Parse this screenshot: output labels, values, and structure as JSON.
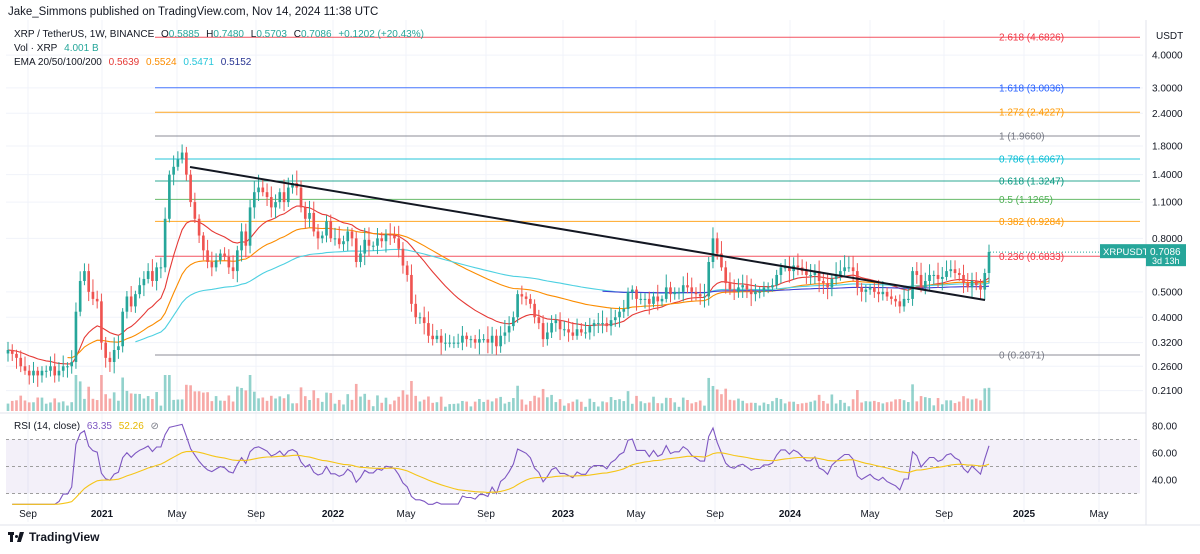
{
  "header": {
    "text": "Jake_Simmons published on TradingView.com, Nov 14, 2024 11:38 UTC"
  },
  "legend": {
    "symbol": "XRP / TetherUS, 1W, BINANCE",
    "ohlc": [
      {
        "k": "O",
        "v": "0.5885"
      },
      {
        "k": "H",
        "v": "0.7480"
      },
      {
        "k": "L",
        "v": "0.5703"
      },
      {
        "k": "C",
        "v": "0.7086"
      }
    ],
    "change": "+0.1202 (+20.43%)",
    "volume_label": "Vol · XRP",
    "volume_value": "4.001 B",
    "ema_label": "EMA 20/50/100/200",
    "ema_values": [
      {
        "v": "0.5639",
        "color": "#e53935"
      },
      {
        "v": "0.5524",
        "color": "#fb8c00"
      },
      {
        "v": "0.5471",
        "color": "#26c6da"
      },
      {
        "v": "0.5152",
        "color": "#283593"
      }
    ]
  },
  "rsi_legend": {
    "label": "RSI (14, close)",
    "value": "63.35",
    "ma_value": "52.26"
  },
  "footer": {
    "brand": "TradingView"
  },
  "colors": {
    "up": "#26a69a",
    "down": "#ef5350",
    "trendline": "#131722",
    "ema20": "#e53935",
    "ema50": "#fb8c00",
    "ema100": "#4dd0e1",
    "ema200": "#3f3fd0",
    "rsi": "#7e57c2",
    "rsi_ma": "#f5c518"
  },
  "chart_data": {
    "type": "candlestick",
    "title": "XRP / TetherUS, 1W, BINANCE",
    "price_unit": "USDT",
    "scale": "log",
    "y_ticks": [
      "4.0000",
      "3.0000",
      "2.4000",
      "1.8000",
      "1.4000",
      "1.1000",
      "0.8000",
      "0.5000",
      "0.4000",
      "0.3200",
      "0.2600",
      "0.2100"
    ],
    "x_ticks": [
      "Sep",
      "2021",
      "May",
      "Sep",
      "2022",
      "May",
      "Sep",
      "2023",
      "May",
      "Sep",
      "2024",
      "May",
      "Sep",
      "2025",
      "May"
    ],
    "x_ticks_bold": [
      "2021",
      "2022",
      "2023",
      "2024",
      "2025"
    ],
    "current_price": {
      "symbol": "XRPUSDT",
      "price": "0.7086",
      "countdown": "3d 13h"
    },
    "fib_levels": [
      {
        "label": "2.618 (4.6826)",
        "price": 4.6826,
        "color": "#f23645"
      },
      {
        "label": "1.618 (3.0036)",
        "price": 3.0036,
        "color": "#2962ff"
      },
      {
        "label": "1.272 (2.4227)",
        "price": 2.4227,
        "color": "#ff9800"
      },
      {
        "label": "1 (1.9660)",
        "price": 1.966,
        "color": "#787b86"
      },
      {
        "label": "0.786 (1.6067)",
        "price": 1.6067,
        "color": "#00bcd4"
      },
      {
        "label": "0.618 (1.3247)",
        "price": 1.3247,
        "color": "#089981"
      },
      {
        "label": "0.5 (1.1265)",
        "price": 1.1265,
        "color": "#4caf50"
      },
      {
        "label": "0.382 (0.9284)",
        "price": 0.9284,
        "color": "#ff9800"
      },
      {
        "label": "0.236 (0.6833)",
        "price": 0.6833,
        "color": "#f23645"
      },
      {
        "label": "0 (0.2871)",
        "price": 0.2871,
        "color": "#787b86"
      }
    ],
    "rsi": {
      "levels": [
        "80.00",
        "60.00",
        "40.00"
      ],
      "overbought": 70,
      "oversold": 30
    },
    "price_series_weekly_close": [
      0.3,
      0.29,
      0.28,
      0.26,
      0.25,
      0.24,
      0.25,
      0.24,
      0.25,
      0.25,
      0.26,
      0.24,
      0.25,
      0.26,
      0.26,
      0.27,
      0.42,
      0.55,
      0.6,
      0.5,
      0.47,
      0.46,
      0.32,
      0.28,
      0.27,
      0.3,
      0.31,
      0.42,
      0.48,
      0.44,
      0.49,
      0.53,
      0.56,
      0.6,
      0.55,
      0.62,
      0.62,
      0.95,
      1.4,
      1.5,
      1.6,
      1.7,
      1.4,
      1.1,
      0.95,
      0.82,
      0.72,
      0.65,
      0.62,
      0.66,
      0.7,
      0.68,
      0.62,
      0.6,
      0.72,
      0.85,
      0.75,
      1.05,
      1.2,
      1.25,
      1.2,
      1.15,
      1.05,
      1.1,
      1.2,
      1.1,
      1.25,
      1.3,
      1.25,
      1.05,
      0.95,
      1.0,
      0.85,
      0.8,
      0.82,
      0.93,
      0.8,
      0.8,
      0.76,
      0.78,
      0.85,
      0.8,
      0.65,
      0.7,
      0.79,
      0.75,
      0.75,
      0.8,
      0.78,
      0.83,
      0.82,
      0.8,
      0.73,
      0.63,
      0.58,
      0.45,
      0.4,
      0.4,
      0.38,
      0.34,
      0.33,
      0.34,
      0.32,
      0.32,
      0.32,
      0.32,
      0.32,
      0.34,
      0.33,
      0.33,
      0.32,
      0.33,
      0.33,
      0.32,
      0.34,
      0.31,
      0.34,
      0.35,
      0.37,
      0.4,
      0.49,
      0.48,
      0.47,
      0.45,
      0.4,
      0.38,
      0.33,
      0.35,
      0.38,
      0.39,
      0.36,
      0.36,
      0.35,
      0.34,
      0.36,
      0.35,
      0.35,
      0.37,
      0.38,
      0.38,
      0.38,
      0.37,
      0.39,
      0.4,
      0.42,
      0.43,
      0.5,
      0.51,
      0.47,
      0.47,
      0.47,
      0.45,
      0.48,
      0.46,
      0.47,
      0.52,
      0.49,
      0.5,
      0.5,
      0.53,
      0.52,
      0.5,
      0.49,
      0.48,
      0.48,
      0.65,
      0.8,
      0.7,
      0.62,
      0.54,
      0.51,
      0.5,
      0.52,
      0.53,
      0.51,
      0.49,
      0.5,
      0.5,
      0.52,
      0.52,
      0.53,
      0.58,
      0.62,
      0.62,
      0.6,
      0.63,
      0.62,
      0.6,
      0.58,
      0.58,
      0.6,
      0.55,
      0.54,
      0.52,
      0.56,
      0.58,
      0.6,
      0.62,
      0.62,
      0.6,
      0.52,
      0.5,
      0.51,
      0.52,
      0.5,
      0.49,
      0.5,
      0.48,
      0.47,
      0.46,
      0.44,
      0.47,
      0.47,
      0.6,
      0.58,
      0.52,
      0.55,
      0.58,
      0.58,
      0.56,
      0.57,
      0.6,
      0.61,
      0.59,
      0.58,
      0.54,
      0.52,
      0.55,
      0.53,
      0.51,
      0.59,
      0.71
    ]
  }
}
